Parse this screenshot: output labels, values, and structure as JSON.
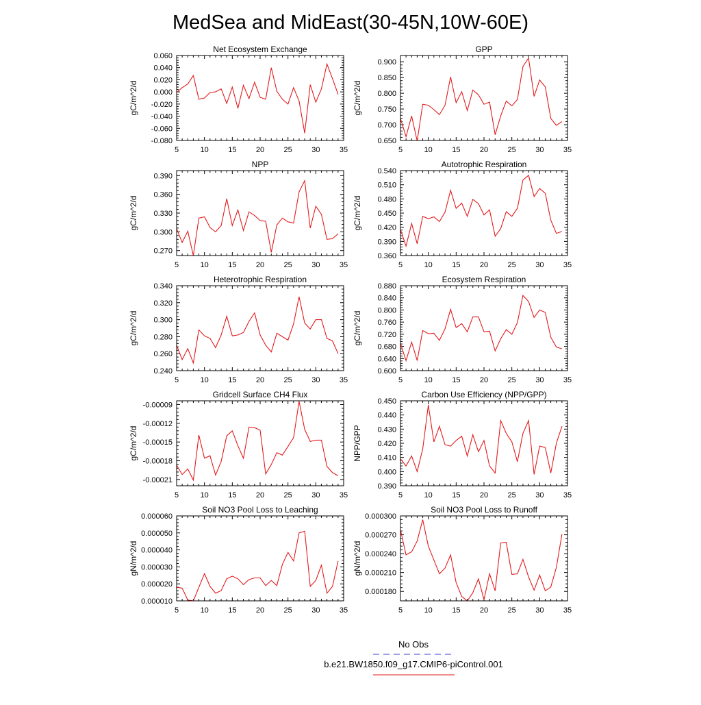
{
  "main_title": "MedSea and MidEast(30-45N,10W-60E)",
  "legend": {
    "entries": [
      {
        "label": "No Obs",
        "color": "#3b3bd1",
        "style": "dashed"
      },
      {
        "label": "b.e21.BW1850.f09_g17.CMIP6-piControl.001",
        "color": "#e31a1c",
        "style": "solid"
      }
    ]
  },
  "chart_data": [
    {
      "type": "line",
      "title": "Net Ecosystem Exchange",
      "ylabel": "gC/m^2/d",
      "xlim": [
        5,
        35
      ],
      "ylim": [
        -0.08,
        0.06
      ],
      "xticks": [
        5,
        10,
        15,
        20,
        25,
        30,
        35
      ],
      "yticks": [
        -0.08,
        -0.06,
        -0.04,
        -0.02,
        0.0,
        0.02,
        0.04,
        0.06
      ],
      "yticklabels": [
        "-0.080",
        "-0.060",
        "-0.040",
        "-0.020",
        "0.000",
        "0.020",
        "0.040",
        "0.060"
      ],
      "series": [
        {
          "name": "b.e21.BW1850.f09_g17.CMIP6-piControl.001",
          "color": "#e31a1c",
          "x": [
            5,
            6,
            7,
            8,
            9,
            10,
            11,
            12,
            13,
            14,
            15,
            16,
            17,
            18,
            19,
            20,
            21,
            22,
            23,
            24,
            25,
            26,
            27,
            28,
            29,
            30,
            31,
            32,
            33,
            34
          ],
          "y": [
            -0.001,
            0.007,
            0.013,
            0.027,
            -0.012,
            -0.01,
            -0.001,
            0.0,
            0.005,
            -0.019,
            0.008,
            -0.027,
            0.011,
            -0.011,
            0.016,
            -0.009,
            -0.012,
            0.04,
            0.001,
            -0.012,
            -0.02,
            0.007,
            -0.015,
            -0.068,
            0.012,
            -0.017,
            0.005,
            0.046,
            0.022,
            -0.004
          ]
        }
      ]
    },
    {
      "type": "line",
      "title": "GPP",
      "ylabel": "gC/m^2/d",
      "xlim": [
        5,
        35
      ],
      "ylim": [
        0.65,
        0.92
      ],
      "xticks": [
        5,
        10,
        15,
        20,
        25,
        30,
        35
      ],
      "yticks": [
        0.65,
        0.7,
        0.75,
        0.8,
        0.85,
        0.9
      ],
      "yticklabels": [
        "0.650",
        "0.700",
        "0.750",
        "0.800",
        "0.850",
        "0.900"
      ],
      "series": [
        {
          "name": "b.e21.BW1850.f09_g17.CMIP6-piControl.001",
          "color": "#e31a1c",
          "x": [
            5,
            6,
            7,
            8,
            9,
            10,
            11,
            12,
            13,
            14,
            15,
            16,
            17,
            18,
            19,
            20,
            21,
            22,
            23,
            24,
            25,
            26,
            27,
            28,
            29,
            30,
            31,
            32,
            33,
            34
          ],
          "y": [
            0.72,
            0.662,
            0.728,
            0.648,
            0.765,
            0.762,
            0.748,
            0.732,
            0.762,
            0.852,
            0.77,
            0.805,
            0.745,
            0.81,
            0.795,
            0.765,
            0.772,
            0.668,
            0.728,
            0.775,
            0.76,
            0.78,
            0.885,
            0.912,
            0.79,
            0.842,
            0.82,
            0.72,
            0.698,
            0.71
          ]
        }
      ]
    },
    {
      "type": "line",
      "title": "NPP",
      "ylabel": "gC/m^2/d",
      "xlim": [
        5,
        35
      ],
      "ylim": [
        0.262,
        0.398
      ],
      "xticks": [
        5,
        10,
        15,
        20,
        25,
        30,
        35
      ],
      "yticks": [
        0.27,
        0.3,
        0.33,
        0.36,
        0.39
      ],
      "yticklabels": [
        "0.270",
        "0.300",
        "0.330",
        "0.360",
        "0.390"
      ],
      "series": [
        {
          "name": "b.e21.BW1850.f09_g17.CMIP6-piControl.001",
          "color": "#e31a1c",
          "x": [
            5,
            6,
            7,
            8,
            9,
            10,
            11,
            12,
            13,
            14,
            15,
            16,
            17,
            18,
            19,
            20,
            21,
            22,
            23,
            24,
            25,
            26,
            27,
            28,
            29,
            30,
            31,
            32,
            33,
            34
          ],
          "y": [
            0.305,
            0.283,
            0.301,
            0.262,
            0.322,
            0.324,
            0.307,
            0.3,
            0.31,
            0.353,
            0.31,
            0.335,
            0.302,
            0.332,
            0.326,
            0.318,
            0.317,
            0.267,
            0.311,
            0.322,
            0.316,
            0.314,
            0.364,
            0.382,
            0.306,
            0.341,
            0.328,
            0.288,
            0.289,
            0.297
          ]
        }
      ]
    },
    {
      "type": "line",
      "title": "Autotrophic Respiration",
      "ylabel": "gC/m^2/d",
      "xlim": [
        5,
        35
      ],
      "ylim": [
        0.36,
        0.54
      ],
      "xticks": [
        5,
        10,
        15,
        20,
        25,
        30,
        35
      ],
      "yticks": [
        0.36,
        0.39,
        0.42,
        0.45,
        0.48,
        0.51,
        0.54
      ],
      "yticklabels": [
        "0.360",
        "0.390",
        "0.420",
        "0.450",
        "0.480",
        "0.510",
        "0.540"
      ],
      "series": [
        {
          "name": "b.e21.BW1850.f09_g17.CMIP6-piControl.001",
          "color": "#e31a1c",
          "x": [
            5,
            6,
            7,
            8,
            9,
            10,
            11,
            12,
            13,
            14,
            15,
            16,
            17,
            18,
            19,
            20,
            21,
            22,
            23,
            24,
            25,
            26,
            27,
            28,
            29,
            30,
            31,
            32,
            33,
            34
          ],
          "y": [
            0.415,
            0.38,
            0.428,
            0.385,
            0.443,
            0.438,
            0.442,
            0.432,
            0.452,
            0.498,
            0.46,
            0.471,
            0.443,
            0.479,
            0.47,
            0.446,
            0.457,
            0.401,
            0.417,
            0.453,
            0.443,
            0.46,
            0.52,
            0.53,
            0.485,
            0.502,
            0.492,
            0.435,
            0.407,
            0.411
          ]
        }
      ]
    },
    {
      "type": "line",
      "title": "Heterotrophic Respiration",
      "ylabel": "gC/m^2/d",
      "xlim": [
        5,
        35
      ],
      "ylim": [
        0.24,
        0.34
      ],
      "xticks": [
        5,
        10,
        15,
        20,
        25,
        30,
        35
      ],
      "yticks": [
        0.24,
        0.26,
        0.28,
        0.3,
        0.32,
        0.34
      ],
      "yticklabels": [
        "0.240",
        "0.260",
        "0.280",
        "0.300",
        "0.320",
        "0.340"
      ],
      "series": [
        {
          "name": "b.e21.BW1850.f09_g17.CMIP6-piControl.001",
          "color": "#e31a1c",
          "x": [
            5,
            6,
            7,
            8,
            9,
            10,
            11,
            12,
            13,
            14,
            15,
            16,
            17,
            18,
            19,
            20,
            21,
            22,
            23,
            24,
            25,
            26,
            27,
            28,
            29,
            30,
            31,
            32,
            33,
            34
          ],
          "y": [
            0.27,
            0.253,
            0.266,
            0.249,
            0.288,
            0.281,
            0.278,
            0.267,
            0.282,
            0.304,
            0.281,
            0.282,
            0.285,
            0.298,
            0.308,
            0.282,
            0.27,
            0.262,
            0.284,
            0.28,
            0.276,
            0.295,
            0.327,
            0.296,
            0.289,
            0.3,
            0.3,
            0.278,
            0.275,
            0.26
          ]
        }
      ]
    },
    {
      "type": "line",
      "title": "Ecosystem Respiration",
      "ylabel": "gC/m^2/d",
      "xlim": [
        5,
        35
      ],
      "ylim": [
        0.6,
        0.88
      ],
      "xticks": [
        5,
        10,
        15,
        20,
        25,
        30,
        35
      ],
      "yticks": [
        0.6,
        0.64,
        0.68,
        0.72,
        0.76,
        0.8,
        0.84,
        0.88
      ],
      "yticklabels": [
        "0.600",
        "0.640",
        "0.680",
        "0.720",
        "0.760",
        "0.800",
        "0.840",
        "0.880"
      ],
      "series": [
        {
          "name": "b.e21.BW1850.f09_g17.CMIP6-piControl.001",
          "color": "#e31a1c",
          "x": [
            5,
            6,
            7,
            8,
            9,
            10,
            11,
            12,
            13,
            14,
            15,
            16,
            17,
            18,
            19,
            20,
            21,
            22,
            23,
            24,
            25,
            26,
            27,
            28,
            29,
            30,
            31,
            32,
            33,
            34
          ],
          "y": [
            0.69,
            0.633,
            0.694,
            0.633,
            0.732,
            0.722,
            0.723,
            0.7,
            0.738,
            0.802,
            0.742,
            0.755,
            0.728,
            0.777,
            0.777,
            0.728,
            0.73,
            0.665,
            0.705,
            0.735,
            0.72,
            0.758,
            0.848,
            0.828,
            0.775,
            0.8,
            0.792,
            0.71,
            0.678,
            0.672
          ]
        }
      ]
    },
    {
      "type": "line",
      "title": "Gridcell Surface CH4 Flux",
      "ylabel": "gC/m^2/d",
      "xlim": [
        5,
        35
      ],
      "ylim": [
        -0.00022,
        -8.4e-05
      ],
      "xticks": [
        5,
        10,
        15,
        20,
        25,
        30,
        35
      ],
      "yticks": [
        -0.00021,
        -0.00018,
        -0.00015,
        -0.00012,
        -9e-05
      ],
      "yticklabels": [
        "-0.00021",
        "-0.00018",
        "-0.00015",
        "-0.00012",
        "-0.00009"
      ],
      "series": [
        {
          "name": "b.e21.BW1850.f09_g17.CMIP6-piControl.001",
          "color": "#e31a1c",
          "x": [
            5,
            6,
            7,
            8,
            9,
            10,
            11,
            12,
            13,
            14,
            15,
            16,
            17,
            18,
            19,
            20,
            21,
            22,
            23,
            24,
            25,
            26,
            27,
            28,
            29,
            30,
            31,
            32,
            33,
            34
          ],
          "y": [
            -0.000187,
            -0.000202,
            -0.000193,
            -0.000211,
            -0.000139,
            -0.000176,
            -0.000172,
            -0.000203,
            -0.000181,
            -0.00014,
            -0.000132,
            -0.000156,
            -0.000176,
            -0.000126,
            -0.000127,
            -0.000131,
            -0.000201,
            -0.000186,
            -0.000167,
            -0.000171,
            -0.000157,
            -0.000143,
            -8.5e-05,
            -0.00013,
            -0.000149,
            -0.000147,
            -0.000147,
            -0.000189,
            -0.000199,
            -0.000204
          ]
        }
      ]
    },
    {
      "type": "line",
      "title": "Carbon Use Efficiency (NPP/GPP)",
      "ylabel": "NPP/GPP",
      "xlim": [
        5,
        35
      ],
      "ylim": [
        0.39,
        0.45
      ],
      "xticks": [
        5,
        10,
        15,
        20,
        25,
        30,
        35
      ],
      "yticks": [
        0.39,
        0.4,
        0.41,
        0.42,
        0.43,
        0.44,
        0.45
      ],
      "yticklabels": [
        "0.390",
        "0.400",
        "0.410",
        "0.420",
        "0.430",
        "0.440",
        "0.450"
      ],
      "series": [
        {
          "name": "b.e21.BW1850.f09_g17.CMIP6-piControl.001",
          "color": "#e31a1c",
          "x": [
            5,
            6,
            7,
            8,
            9,
            10,
            11,
            12,
            13,
            14,
            15,
            16,
            17,
            18,
            19,
            20,
            21,
            22,
            23,
            24,
            25,
            26,
            27,
            28,
            29,
            30,
            31,
            32,
            33,
            34
          ],
          "y": [
            0.409,
            0.404,
            0.411,
            0.4,
            0.416,
            0.447,
            0.421,
            0.432,
            0.419,
            0.418,
            0.422,
            0.425,
            0.411,
            0.426,
            0.414,
            0.422,
            0.404,
            0.399,
            0.436,
            0.427,
            0.421,
            0.407,
            0.427,
            0.436,
            0.398,
            0.418,
            0.417,
            0.399,
            0.42,
            0.432
          ]
        }
      ]
    },
    {
      "type": "line",
      "title": "Soil NO3 Pool Loss to Leaching",
      "ylabel": "gN/m^2/d",
      "xlim": [
        5,
        35
      ],
      "ylim": [
        1e-05,
        6e-05
      ],
      "xticks": [
        5,
        10,
        15,
        20,
        25,
        30,
        35
      ],
      "yticks": [
        1e-05,
        2e-05,
        3e-05,
        4e-05,
        5e-05,
        6e-05
      ],
      "yticklabels": [
        "0.000010",
        "0.000020",
        "0.000030",
        "0.000040",
        "0.000050",
        "0.000060"
      ],
      "series": [
        {
          "name": "b.e21.BW1850.f09_g17.CMIP6-piControl.001",
          "color": "#e31a1c",
          "x": [
            5,
            6,
            7,
            8,
            9,
            10,
            11,
            12,
            13,
            14,
            15,
            16,
            17,
            18,
            19,
            20,
            21,
            22,
            23,
            24,
            25,
            26,
            27,
            28,
            29,
            30,
            31,
            32,
            33,
            34
          ],
          "y": [
            1.8e-05,
            1.75e-05,
            1.05e-05,
            1e-05,
            1.8e-05,
            2.6e-05,
            1.85e-05,
            1.45e-05,
            1.6e-05,
            2.3e-05,
            2.45e-05,
            2.3e-05,
            1.95e-05,
            2.25e-05,
            2.35e-05,
            2.35e-05,
            1.9e-05,
            2.2e-05,
            1.9e-05,
            3.15e-05,
            3.85e-05,
            3.35e-05,
            5e-05,
            5.1e-05,
            1.85e-05,
            2.2e-05,
            3.1e-05,
            1.45e-05,
            1.85e-05,
            3.35e-05
          ]
        }
      ]
    },
    {
      "type": "line",
      "title": "Soil NO3 Pool Loss to Runoff",
      "ylabel": "gN/m^2/d",
      "xlim": [
        5,
        35
      ],
      "ylim": [
        0.000165,
        0.0003
      ],
      "xticks": [
        5,
        10,
        15,
        20,
        25,
        30,
        35
      ],
      "yticks": [
        0.00018,
        0.00021,
        0.00024,
        0.00027,
        0.0003
      ],
      "yticklabels": [
        "0.000180",
        "0.000210",
        "0.000240",
        "0.000270",
        "0.000300"
      ],
      "series": [
        {
          "name": "b.e21.BW1850.f09_g17.CMIP6-piControl.001",
          "color": "#e31a1c",
          "x": [
            5,
            6,
            7,
            8,
            9,
            10,
            11,
            12,
            13,
            14,
            15,
            16,
            17,
            18,
            19,
            20,
            21,
            22,
            23,
            24,
            25,
            26,
            27,
            28,
            29,
            30,
            31,
            32,
            33,
            34
          ],
          "y": [
            0.000278,
            0.000238,
            0.000243,
            0.00026,
            0.000294,
            0.000252,
            0.00023,
            0.000208,
            0.000217,
            0.000238,
            0.000194,
            0.000172,
            0.000165,
            0.000178,
            0.0002,
            0.000167,
            0.000208,
            0.000181,
            0.000257,
            0.000258,
            0.000207,
            0.000208,
            0.000231,
            0.000203,
            0.000182,
            0.000206,
            0.000181,
            0.000187,
            0.000218,
            0.000271
          ]
        }
      ]
    }
  ]
}
